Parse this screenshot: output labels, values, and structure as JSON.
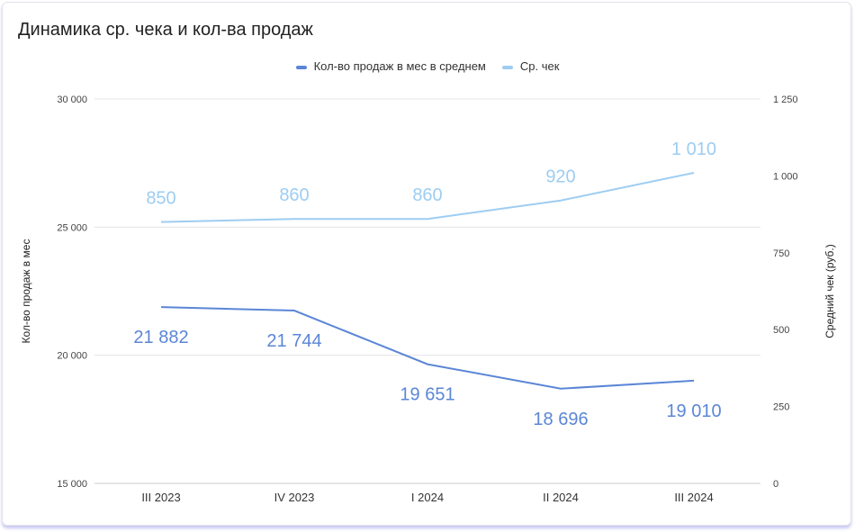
{
  "chart_data": {
    "type": "line",
    "title": "Динамика ср. чека и кол-ва продаж",
    "categories": [
      "III 2023",
      "IV 2023",
      "I 2024",
      "II 2024",
      "III 2024"
    ],
    "series": [
      {
        "name": "Кол-во продаж в мес в среднем",
        "axis": "left",
        "color": "#5b86d6",
        "values": [
          21882,
          21744,
          19651,
          18696,
          19010
        ],
        "labels": [
          "21 882",
          "21 744",
          "19 651",
          "18 696",
          "19 010"
        ]
      },
      {
        "name": "Ср. чек",
        "axis": "right",
        "color": "#9dcdf2",
        "values": [
          850,
          860,
          860,
          920,
          1010
        ],
        "labels": [
          "850",
          "860",
          "860",
          "920",
          "1 010"
        ]
      }
    ],
    "ylabel": "Кол-во продаж в мес",
    "ylabel_right": "Средний чек (руб.)",
    "ylim": [
      15000,
      30000
    ],
    "ylim_right": [
      0,
      1250
    ],
    "yticks": [
      "15 000",
      "20 000",
      "25 000",
      "30 000"
    ],
    "yticks_right": [
      "0",
      "250",
      "500",
      "750",
      "1 000",
      "1 250"
    ],
    "legend_position": "top",
    "grid": true
  }
}
